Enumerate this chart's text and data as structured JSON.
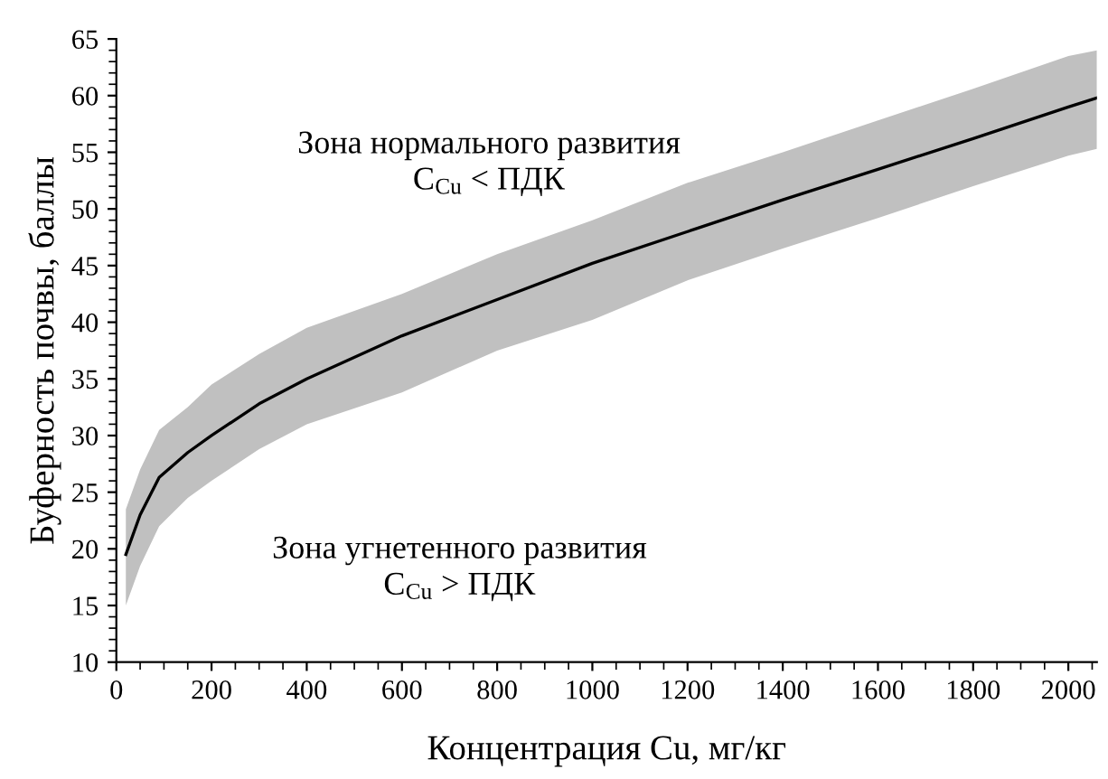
{
  "chart_data": {
    "type": "line",
    "xlabel": "Концентрация Cu, мг/кг",
    "ylabel": "Буферность почвы, баллы",
    "annotations": [
      "Зона нормального развития\nC$_{Cu}$ < ПДК",
      "Зона угнетенного развития\nC$_{Cu}$ > ПДК"
    ],
    "series": [
      {
        "color": "#000000",
        "x": [
          20,
          50,
          90,
          150,
          200,
          300,
          400,
          600,
          800,
          1000,
          1200,
          1400,
          1600,
          1800,
          2000,
          2060
        ],
        "values": [
          19.5,
          23,
          26.3,
          28.5,
          30,
          32.8,
          35,
          38.8,
          42,
          45.2,
          48,
          50.8,
          53.5,
          56.2,
          59,
          59.8
        ],
        "upper": [
          23.5,
          27,
          30.5,
          32.5,
          34.5,
          37.2,
          39.5,
          42.5,
          46,
          49,
          52.3,
          55,
          57.8,
          60.6,
          63.5,
          64
        ],
        "lower": [
          15,
          18.5,
          22,
          24.5,
          26,
          28.8,
          31,
          33.8,
          37.5,
          40.2,
          43.7,
          46.5,
          49.2,
          52,
          54.7,
          55.3
        ]
      }
    ],
    "xlim": [
      0,
      2060
    ],
    "xticks": [
      0,
      200,
      400,
      600,
      800,
      1000,
      1200,
      1400,
      1600,
      1800,
      2000
    ],
    "ylim": [
      10,
      65
    ],
    "yticks": [
      10,
      15,
      20,
      25,
      30,
      35,
      40,
      45,
      50,
      55,
      60,
      65
    ],
    "grid": false,
    "legend": false,
    "marker": "none",
    "line_style": "solid"
  }
}
